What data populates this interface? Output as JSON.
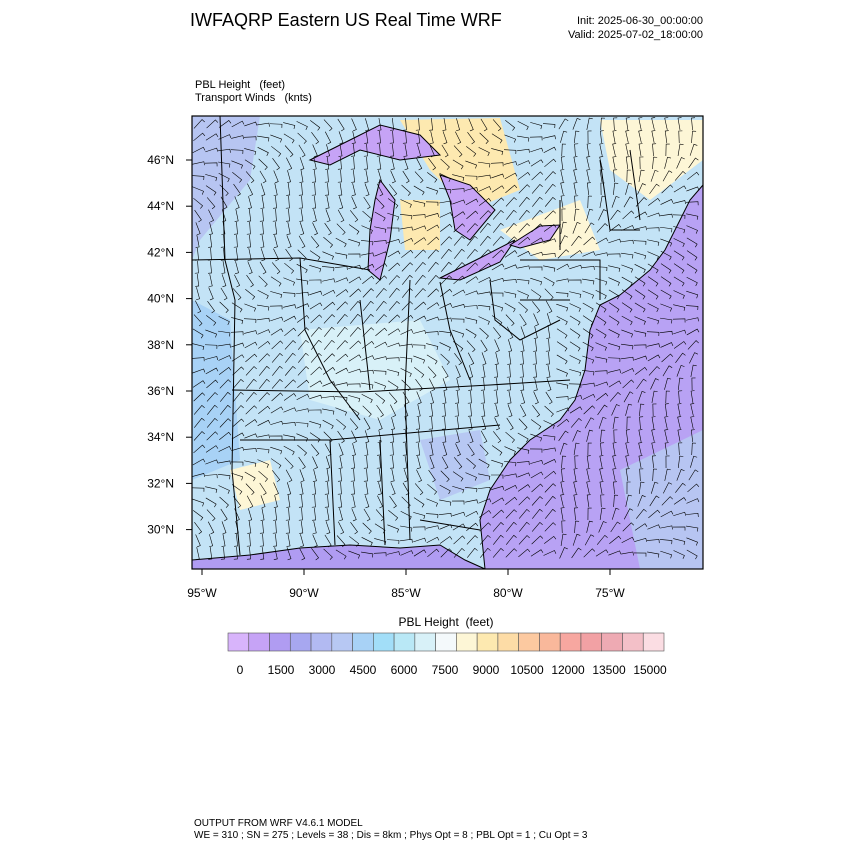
{
  "header": {
    "title": "IWFAQRP Eastern US Real Time WRF",
    "init": "Init: 2025-06-30_00:00:00",
    "valid": "Valid: 2025-07-02_18:00:00"
  },
  "map": {
    "field_label": "PBL Height   (feet)",
    "wind_label": "Transport Winds   (knts)",
    "lat_labels": [
      "46°N",
      "44°N",
      "42°N",
      "40°N",
      "38°N",
      "36°N",
      "34°N",
      "32°N",
      "30°N"
    ],
    "lon_labels": [
      "95°W",
      "90°W",
      "85°W",
      "80°W",
      "75°W"
    ]
  },
  "colorbar": {
    "title": "PBL Height  (feet)",
    "labels": [
      0,
      1500,
      3000,
      4500,
      6000,
      7500,
      9000,
      10500,
      12000,
      13500,
      15000
    ],
    "colors": [
      "#d8b4fb",
      "#c6a3f6",
      "#b09cf2",
      "#a7a7f0",
      "#b2baf2",
      "#b7c8f3",
      "#a8d2f6",
      "#a2def8",
      "#b9e8f6",
      "#d8f1f8",
      "#f4f9fb",
      "#fdf6d6",
      "#fde9b0",
      "#fddca6",
      "#fcc9a0",
      "#f9b89b",
      "#f7a7a0",
      "#f2a1a4",
      "#eeaab3",
      "#f3c0c8",
      "#fbdde3"
    ]
  },
  "footer": {
    "line1": "OUTPUT FROM WRF V4.6.1 MODEL",
    "line2": "WE = 310 ; SN = 275 ; Levels = 38 ; Dis = 8km ; Phys Opt = 8 ; PBL Opt = 1 ; Cu Opt = 3"
  }
}
